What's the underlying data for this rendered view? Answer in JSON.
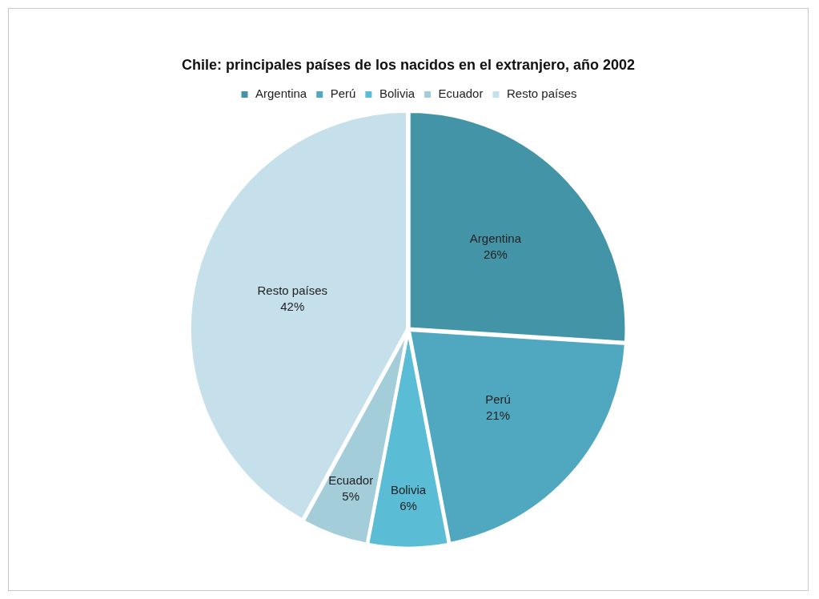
{
  "chart_data": {
    "type": "pie",
    "title": "Chile: principales países de los nacidos en el extranjero, año 2002",
    "categories": [
      "Argentina",
      "Perú",
      "Bolivia",
      "Ecuador",
      "Resto países"
    ],
    "values": [
      26,
      21,
      6,
      5,
      42
    ],
    "colors": [
      "#4494a8",
      "#4fa8c0",
      "#5bbcd6",
      "#a3cdd9",
      "#c5e0ea"
    ],
    "value_labels": [
      "26%",
      "21%",
      "6%",
      "5%",
      "42%"
    ],
    "legend": "top"
  }
}
